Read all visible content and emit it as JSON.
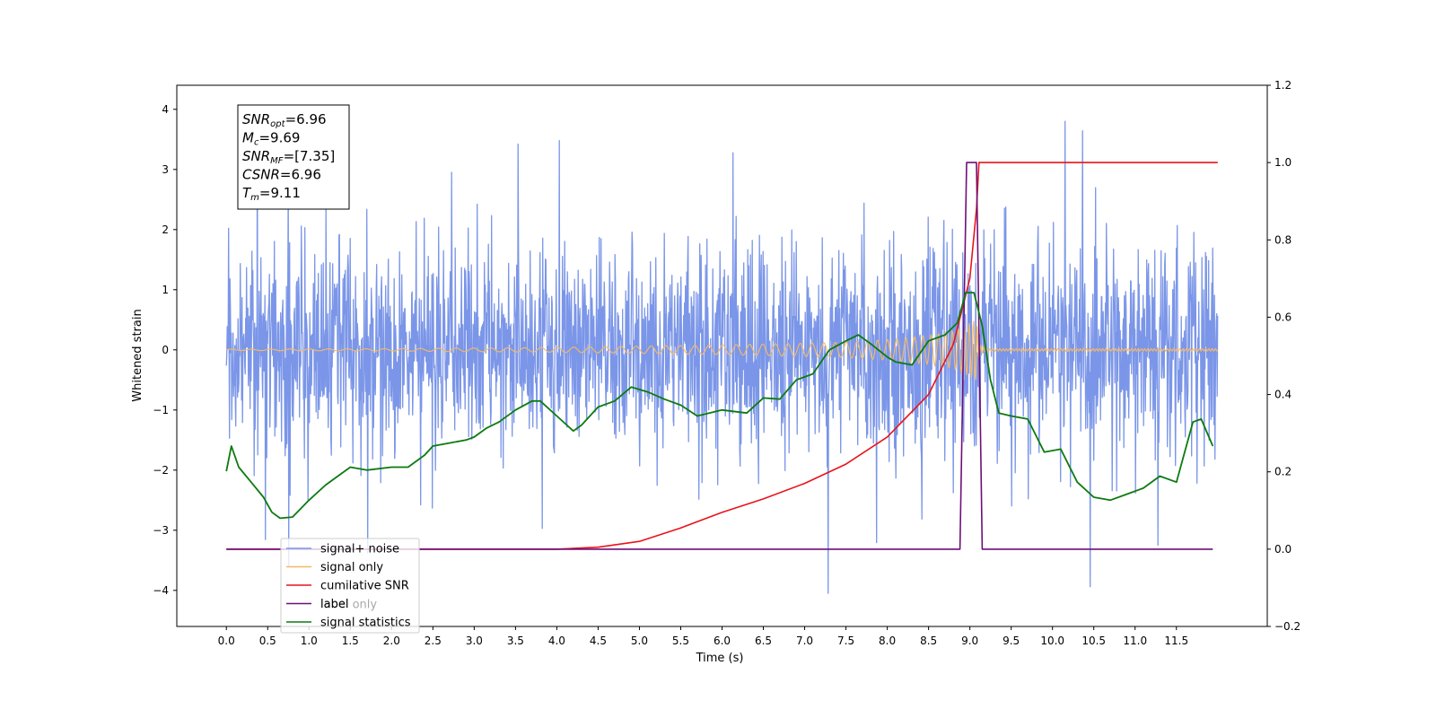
{
  "chart_data": {
    "type": "line",
    "title": "",
    "xlabel": "Time (s)",
    "ylabel": "Whitened strain",
    "xlim": [
      -0.6,
      12.6
    ],
    "ylim": [
      -4.6,
      4.4
    ],
    "y2lim": [
      -0.2,
      1.2
    ],
    "grid": false,
    "legend_position": "lower-left",
    "x_ticks": [
      "0.0",
      "0.5",
      "1.0",
      "1.5",
      "2.0",
      "2.5",
      "3.0",
      "3.5",
      "4.0",
      "4.5",
      "5.0",
      "5.5",
      "6.0",
      "6.5",
      "7.0",
      "7.5",
      "8.0",
      "8.5",
      "9.0",
      "9.5",
      "10.0",
      "10.5",
      "11.0",
      "11.5"
    ],
    "y_ticks": [
      "4",
      "3",
      "2",
      "1",
      "0",
      "−1",
      "−2",
      "−3",
      "−4"
    ],
    "y2_ticks": [
      "1.2",
      "1.0",
      "0.8",
      "0.6",
      "0.4",
      "0.2",
      "0.0",
      "−0.2"
    ],
    "annotation": [
      {
        "sym": "SNR",
        "sub": "opt",
        "val": "=6.96"
      },
      {
        "sym": "M",
        "sub": "c",
        "val": "=9.69"
      },
      {
        "sym": "SNR",
        "sub": "MF",
        "val": "=[7.35]"
      },
      {
        "sym": "CSNR",
        "sub": "",
        "val": "=6.96"
      },
      {
        "sym": "T",
        "sub": "m",
        "val": "=9.11"
      }
    ],
    "noise": {
      "t_start": 0.0,
      "t_end": 12.0,
      "std": 0.85,
      "seed": 7
    },
    "series": [
      {
        "name": "signal+ noise",
        "color": "#7b96e8",
        "axis": "left"
      },
      {
        "name": "signal only",
        "color": "#f5b866",
        "axis": "left",
        "envelope": [
          [
            0.0,
            0.01
          ],
          [
            2.0,
            0.02
          ],
          [
            4.0,
            0.04
          ],
          [
            5.0,
            0.06
          ],
          [
            6.0,
            0.08
          ],
          [
            7.0,
            0.11
          ],
          [
            7.5,
            0.13
          ],
          [
            8.0,
            0.17
          ],
          [
            8.5,
            0.24
          ],
          [
            8.8,
            0.32
          ],
          [
            9.0,
            0.45
          ],
          [
            9.08,
            0.55
          ],
          [
            9.11,
            0.1
          ],
          [
            9.2,
            0.02
          ],
          [
            12.0,
            0.02
          ]
        ]
      },
      {
        "name": "cumilative SNR",
        "color": "#e8141b",
        "axis": "right",
        "points": [
          [
            0.0,
            0.0
          ],
          [
            4.0,
            0.0
          ],
          [
            4.5,
            0.005
          ],
          [
            5.0,
            0.02
          ],
          [
            5.5,
            0.055
          ],
          [
            6.0,
            0.095
          ],
          [
            6.5,
            0.13
          ],
          [
            7.0,
            0.17
          ],
          [
            7.5,
            0.22
          ],
          [
            8.0,
            0.29
          ],
          [
            8.5,
            0.4
          ],
          [
            8.8,
            0.53
          ],
          [
            9.0,
            0.7
          ],
          [
            9.08,
            0.88
          ],
          [
            9.11,
            1.0
          ],
          [
            12.0,
            1.0
          ]
        ]
      },
      {
        "name": "label",
        "color": "#6e0f78",
        "axis": "right",
        "points": [
          [
            0.0,
            0.0
          ],
          [
            8.88,
            0.0
          ],
          [
            8.96,
            1.0
          ],
          [
            9.08,
            1.0
          ],
          [
            9.15,
            0.0
          ],
          [
            11.94,
            0.0
          ]
        ]
      },
      {
        "name": "label only",
        "color": "#6e0f78",
        "axis": "right"
      },
      {
        "name": "signal statistics",
        "color": "#0d7a10",
        "axis": "left",
        "points": [
          [
            0.0,
            -2.02
          ],
          [
            0.06,
            -1.6
          ],
          [
            0.15,
            -1.95
          ],
          [
            0.3,
            -2.2
          ],
          [
            0.45,
            -2.45
          ],
          [
            0.55,
            -2.7
          ],
          [
            0.65,
            -2.8
          ],
          [
            0.8,
            -2.78
          ],
          [
            1.0,
            -2.5
          ],
          [
            1.2,
            -2.25
          ],
          [
            1.4,
            -2.05
          ],
          [
            1.5,
            -1.95
          ],
          [
            1.7,
            -2.0
          ],
          [
            2.0,
            -1.95
          ],
          [
            2.2,
            -1.95
          ],
          [
            2.4,
            -1.75
          ],
          [
            2.5,
            -1.6
          ],
          [
            2.7,
            -1.55
          ],
          [
            2.9,
            -1.5
          ],
          [
            3.0,
            -1.45
          ],
          [
            3.15,
            -1.3
          ],
          [
            3.3,
            -1.2
          ],
          [
            3.5,
            -1.0
          ],
          [
            3.7,
            -0.85
          ],
          [
            3.8,
            -0.85
          ],
          [
            4.0,
            -1.1
          ],
          [
            4.2,
            -1.35
          ],
          [
            4.3,
            -1.25
          ],
          [
            4.5,
            -0.95
          ],
          [
            4.7,
            -0.85
          ],
          [
            4.9,
            -0.62
          ],
          [
            5.1,
            -0.7
          ],
          [
            5.3,
            -0.82
          ],
          [
            5.5,
            -0.92
          ],
          [
            5.7,
            -1.1
          ],
          [
            6.0,
            -1.0
          ],
          [
            6.3,
            -1.05
          ],
          [
            6.5,
            -0.8
          ],
          [
            6.7,
            -0.82
          ],
          [
            6.9,
            -0.5
          ],
          [
            7.1,
            -0.4
          ],
          [
            7.3,
            0.0
          ],
          [
            7.5,
            0.15
          ],
          [
            7.65,
            0.25
          ],
          [
            7.8,
            0.1
          ],
          [
            8.0,
            -0.12
          ],
          [
            8.1,
            -0.2
          ],
          [
            8.3,
            -0.25
          ],
          [
            8.5,
            0.15
          ],
          [
            8.7,
            0.25
          ],
          [
            8.85,
            0.45
          ],
          [
            8.95,
            0.95
          ],
          [
            9.05,
            0.95
          ],
          [
            9.15,
            0.4
          ],
          [
            9.25,
            -0.5
          ],
          [
            9.35,
            -1.05
          ],
          [
            9.5,
            -1.1
          ],
          [
            9.7,
            -1.15
          ],
          [
            9.9,
            -1.7
          ],
          [
            10.1,
            -1.65
          ],
          [
            10.3,
            -2.2
          ],
          [
            10.5,
            -2.45
          ],
          [
            10.7,
            -2.5
          ],
          [
            10.9,
            -2.4
          ],
          [
            11.1,
            -2.3
          ],
          [
            11.3,
            -2.1
          ],
          [
            11.5,
            -2.2
          ],
          [
            11.7,
            -1.2
          ],
          [
            11.8,
            -1.15
          ],
          [
            11.94,
            -1.6
          ]
        ]
      }
    ]
  }
}
